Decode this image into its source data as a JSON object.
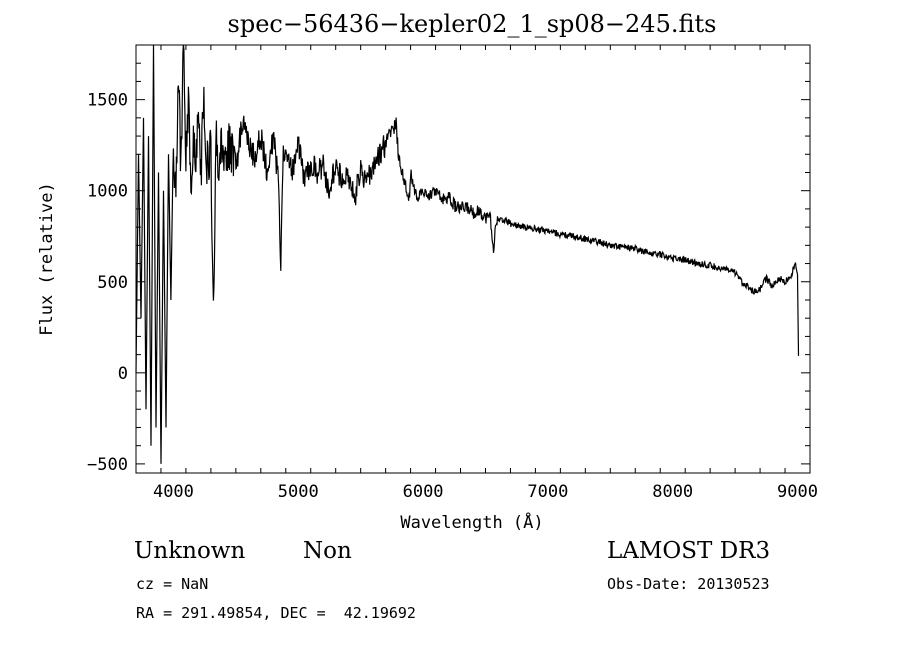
{
  "chart_data": {
    "type": "line",
    "title": "spec−56436−kepler02_1_sp08−245.fits",
    "xlabel": "Wavelength (Å)",
    "ylabel": "Flux (relative)",
    "xlim": [
      3700,
      9100
    ],
    "ylim": [
      -550,
      1800
    ],
    "xticks": [
      4000,
      5000,
      6000,
      7000,
      8000,
      9000
    ],
    "xtick_labels": [
      "4000",
      "5000",
      "6000",
      "7000",
      "8000",
      "9000"
    ],
    "yticks": [
      -500,
      0,
      500,
      1000,
      1500
    ],
    "ytick_labels": [
      "−500",
      "0",
      "500",
      "1000",
      "1500"
    ],
    "grid": false,
    "series": [
      {
        "name": "flux",
        "x": [
          3700,
          3720,
          3740,
          3760,
          3780,
          3800,
          3820,
          3840,
          3860,
          3880,
          3900,
          3920,
          3940,
          3960,
          3980,
          4000,
          4020,
          4040,
          4060,
          4080,
          4100,
          4120,
          4140,
          4160,
          4180,
          4200,
          4220,
          4240,
          4260,
          4280,
          4300,
          4320,
          4340,
          4360,
          4380,
          4400,
          4450,
          4500,
          4550,
          4600,
          4650,
          4700,
          4750,
          4800,
          4840,
          4860,
          4880,
          4920,
          4960,
          5000,
          5050,
          5100,
          5150,
          5200,
          5250,
          5300,
          5350,
          5400,
          5450,
          5500,
          5550,
          5600,
          5650,
          5700,
          5750,
          5780,
          5800,
          5850,
          5890,
          5900,
          5950,
          6000,
          6050,
          6100,
          6150,
          6200,
          6250,
          6300,
          6350,
          6400,
          6450,
          6500,
          6540,
          6563,
          6580,
          6650,
          6700,
          6800,
          6900,
          7000,
          7100,
          7200,
          7300,
          7400,
          7500,
          7600,
          7700,
          7800,
          7900,
          8000,
          8100,
          8200,
          8300,
          8400,
          8500,
          8550,
          8600,
          8650,
          8700,
          8750,
          8800,
          8850,
          8900,
          8950,
          8980,
          9000,
          9010
        ],
        "y": [
          0,
          1200,
          300,
          1400,
          -200,
          1300,
          -400,
          1800,
          -300,
          1100,
          -500,
          1000,
          -300,
          1200,
          400,
          1300,
          900,
          1650,
          1100,
          1800,
          1200,
          1500,
          950,
          1300,
          1100,
          1400,
          1050,
          1500,
          1200,
          1100,
          1250,
          300,
          1300,
          1150,
          1300,
          1200,
          1250,
          1100,
          1380,
          1250,
          1180,
          1300,
          1100,
          1300,
          1050,
          600,
          1250,
          1150,
          1100,
          1250,
          1050,
          1150,
          1100,
          1130,
          1000,
          1150,
          1050,
          1100,
          950,
          1120,
          1050,
          1150,
          1200,
          1250,
          1300,
          1400,
          1200,
          1050,
          950,
          1100,
          950,
          1000,
          980,
          1000,
          950,
          970,
          920,
          900,
          910,
          880,
          890,
          850,
          860,
          650,
          830,
          840,
          820,
          800,
          790,
          780,
          760,
          750,
          735,
          720,
          700,
          690,
          680,
          660,
          650,
          630,
          620,
          600,
          590,
          570,
          550,
          500,
          480,
          440,
          460,
          520,
          470,
          520,
          500,
          530,
          600,
          550,
          0
        ]
      }
    ]
  },
  "info": {
    "class_label": "Unknown",
    "subclass_label": "Non",
    "survey_label": "LAMOST DR3",
    "cz_text": "cz = NaN",
    "obs_date_text": "Obs-Date: 20130523",
    "coords_text": "RA = 291.49854, DEC =  42.19692"
  }
}
